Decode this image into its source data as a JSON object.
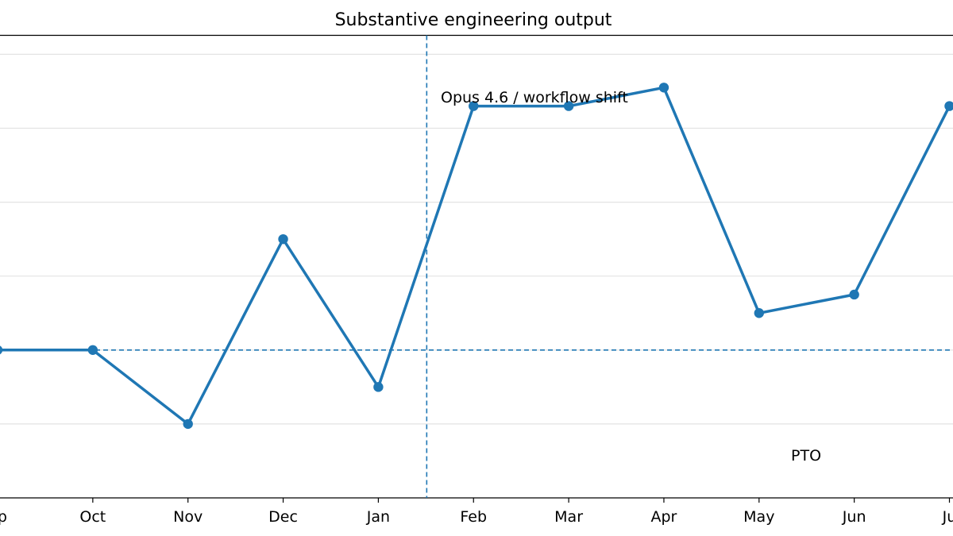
{
  "chart_data": {
    "type": "line",
    "title": "Substantive engineering output",
    "xlabel": "",
    "ylabel": "",
    "categories": [
      "Sep",
      "Oct",
      "Nov",
      "Dec",
      "Jan",
      "Feb",
      "Mar",
      "Apr",
      "May",
      "Jun",
      "Jul"
    ],
    "x_tick_labels": [
      "ep",
      "Oct",
      "Nov",
      "Dec",
      "Jan",
      "Feb",
      "Mar",
      "Apr",
      "May",
      "Jun",
      "Ju"
    ],
    "series": [
      {
        "values": [
          2,
          2,
          1,
          3.5,
          1.5,
          5.3,
          5.3,
          5.55,
          2.5,
          2.75,
          5.3
        ],
        "color": "#1f77b4"
      }
    ],
    "ylim": [
      0,
      6
    ],
    "grid": "horizontal",
    "reference_lines": [
      {
        "orientation": "horizontal",
        "y": 2,
        "style": "dashed",
        "color": "#1f77b4"
      },
      {
        "orientation": "vertical",
        "x": "Jan/Feb",
        "style": "dashed",
        "color": "#1f77b4"
      }
    ],
    "annotations": [
      {
        "text": "Opus 4.6 / workflow shift",
        "anchor": "Feb"
      },
      {
        "text": "PTO",
        "anchor": "May"
      }
    ]
  }
}
